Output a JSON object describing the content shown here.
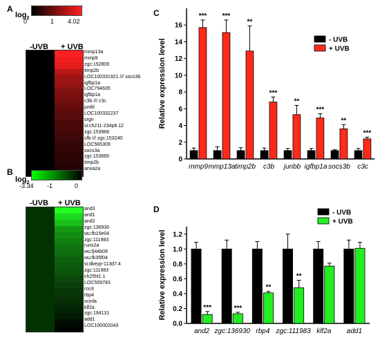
{
  "panelA": {
    "label": "A",
    "scale_title": "log",
    "scale_sub": "2",
    "scale_min": "0",
    "scale_mid": "1",
    "scale_max": "4.02",
    "cond_left": "-UVB",
    "cond_right": "+ UVB",
    "colors": {
      "low": "#000000",
      "high": "#ff2020"
    },
    "genes": [
      "mmp13a",
      "mmp9",
      "zgc:152809",
      "timp2b",
      "LOC100331921 /// socs3b",
      "igfbp1a",
      "LOC794635",
      "igfbp1a",
      "c3b /// c3c",
      "junbl",
      "LOC100332237",
      "srgn",
      "si:ch211-234p6.12",
      "zgc:153968",
      "cfb /// zgc:153240",
      "LOC565309",
      "socs3a",
      "zgc:153665",
      "timp2b",
      "anxa2a"
    ],
    "intensity": [
      1.0,
      0.95,
      0.9,
      0.72,
      0.62,
      0.58,
      0.5,
      0.48,
      0.42,
      0.38,
      0.34,
      0.3,
      0.28,
      0.25,
      0.22,
      0.2,
      0.18,
      0.16,
      0.14,
      0.12
    ]
  },
  "panelB": {
    "label": "B",
    "scale_title": "log",
    "scale_sub": "2",
    "scale_min": "-3.34",
    "scale_mid": "-1",
    "scale_max": "0",
    "cond_left": "-UVB",
    "cond_right": "+ UVB",
    "colors": {
      "low": "#00ff00",
      "high": "#000000"
    },
    "genes": [
      "and3",
      "and1",
      "and2",
      "zgc:136930",
      "wu:fb15e04",
      "zgc:111983",
      "runx2a",
      "wu:fj44b09",
      "wu:fk35f04",
      "si:dkeyp-113d7.4",
      "zgc:111983",
      "ch25hl1.1",
      "LOC559783",
      "rcn3",
      "rbp4",
      "scinla",
      "klf2a",
      "zgc:194131",
      "add1",
      "LOC100002043"
    ],
    "intensity": [
      1.0,
      0.85,
      0.75,
      0.6,
      0.55,
      0.5,
      0.45,
      0.42,
      0.38,
      0.35,
      0.32,
      0.28,
      0.25,
      0.22,
      0.2,
      0.17,
      0.14,
      0.1,
      0.05,
      0.02
    ]
  },
  "panelC": {
    "label": "C",
    "legend": [
      "- UVB",
      "+ UVB"
    ],
    "colors": {
      "minus": "#000000",
      "plus": "#ff2a1a"
    }
  },
  "panelD": {
    "label": "D",
    "legend": [
      "- UVB",
      "+ UVB"
    ],
    "colors": {
      "minus": "#000000",
      "plus": "#22ee22"
    }
  },
  "chart_data": [
    {
      "panel": "C",
      "type": "bar",
      "ylabel": "Relative expression level",
      "ylim": [
        0,
        18
      ],
      "yticks": [
        0,
        2,
        4,
        6,
        8,
        10,
        12,
        14,
        16
      ],
      "categories": [
        "mmp9",
        "mmp13a",
        "timp2b",
        "c3b",
        "junbb",
        "igfbp1a",
        "socs3b",
        "c3c"
      ],
      "series": [
        {
          "name": "- UVB",
          "values": [
            1.0,
            1.0,
            1.0,
            1.0,
            1.0,
            1.0,
            1.0,
            1.0
          ],
          "errors": [
            0.3,
            0.45,
            0.35,
            0.3,
            0.25,
            0.25,
            0.1,
            0.25
          ]
        },
        {
          "name": "+ UVB",
          "values": [
            15.7,
            15.1,
            12.9,
            6.8,
            5.3,
            4.9,
            3.6,
            2.4
          ],
          "errors": [
            0.9,
            1.5,
            3.0,
            0.6,
            1.1,
            0.5,
            0.5,
            0.2
          ]
        }
      ],
      "significance": [
        "***",
        "***",
        "**",
        "***",
        "**",
        "***",
        "**",
        "***"
      ]
    },
    {
      "panel": "D",
      "type": "bar",
      "ylabel": "Relative expression level",
      "ylim": [
        0,
        1.3
      ],
      "yticks": [
        0.0,
        0.2,
        0.4,
        0.6,
        0.8,
        1.0,
        1.2
      ],
      "categories": [
        "and2",
        "zgc:136930",
        "rbp4",
        "zgc:111983",
        "klf2a",
        "add1"
      ],
      "series": [
        {
          "name": "- UVB",
          "values": [
            1.0,
            1.0,
            1.0,
            1.0,
            1.0,
            1.0
          ],
          "errors": [
            0.09,
            0.12,
            0.1,
            0.2,
            0.1,
            0.12
          ]
        },
        {
          "name": "+ UVB",
          "values": [
            0.12,
            0.13,
            0.41,
            0.48,
            0.77,
            1.01
          ],
          "errors": [
            0.04,
            0.02,
            0.02,
            0.1,
            0.04,
            0.08
          ]
        }
      ],
      "significance": [
        "***",
        "***",
        "**",
        "**",
        "",
        ""
      ]
    }
  ]
}
